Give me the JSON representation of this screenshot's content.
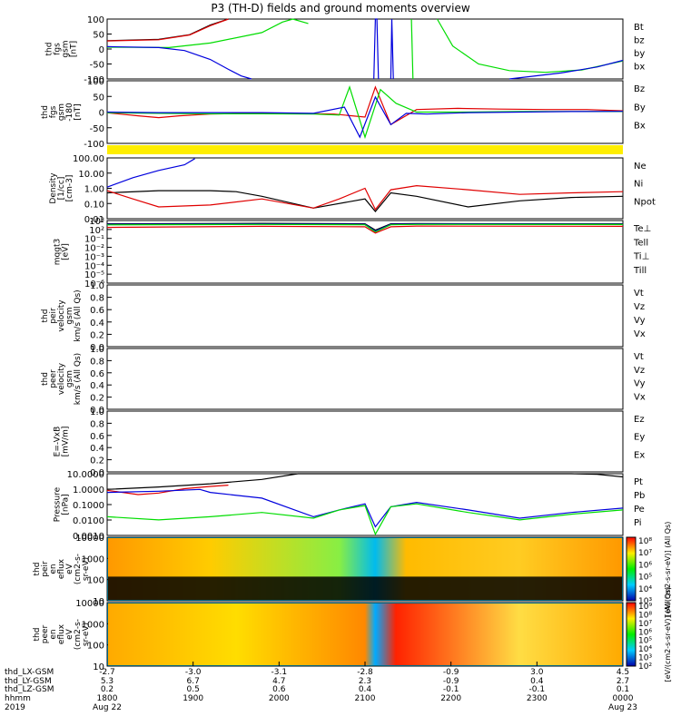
{
  "title": "P3 (TH-D) fields and ground moments overview",
  "colors": {
    "black": "#000000",
    "red": "#e00000",
    "green": "#00dd00",
    "blue": "#0000dd",
    "yellow": "#ffee00"
  },
  "chart_data": [
    {
      "id": "fgs",
      "type": "line",
      "ylabel_lines": [
        "thd",
        "fgs",
        "gsm",
        "[nT]"
      ],
      "ylim": [
        -100,
        100
      ],
      "yticks": [
        100,
        50,
        0,
        -50,
        -100
      ],
      "legend": [
        "Bt",
        "bz",
        "by",
        "bx"
      ],
      "legend_colors": [
        "black",
        "red",
        "green",
        "blue"
      ],
      "series": [
        {
          "color": "black",
          "x": [
            0,
            0.1,
            0.16,
            0.2,
            0.235
          ],
          "y": [
            28,
            32,
            48,
            80,
            100
          ]
        },
        {
          "color": "red",
          "x": [
            0,
            0.1,
            0.16,
            0.2,
            0.235
          ],
          "y": [
            27,
            31,
            47,
            78,
            100
          ]
        },
        {
          "color": "green",
          "x": [
            0,
            0.12,
            0.2,
            0.3,
            0.34,
            0.36,
            0.39
          ],
          "y": [
            6,
            5,
            20,
            55,
            90,
            100,
            85
          ]
        },
        {
          "color": "blue",
          "x": [
            0,
            0.1,
            0.15,
            0.2,
            0.235,
            0.26,
            0.28
          ],
          "y": [
            8,
            5,
            -5,
            -35,
            -68,
            -90,
            -100
          ]
        },
        {
          "color": "blue",
          "x": [
            0.517,
            0.52,
            0.523,
            0.526
          ],
          "y": [
            -100,
            100,
            100,
            -100
          ]
        },
        {
          "color": "blue",
          "x": [
            0.55,
            0.552,
            0.555
          ],
          "y": [
            -100,
            100,
            -100
          ]
        },
        {
          "color": "green",
          "x": [
            0.59,
            0.593
          ],
          "y": [
            100,
            -100
          ]
        },
        {
          "color": "green",
          "x": [
            0.64,
            0.67,
            0.72,
            0.78,
            0.85,
            0.92,
            1.0
          ],
          "y": [
            100,
            10,
            -50,
            -72,
            -78,
            -70,
            -40
          ]
        },
        {
          "color": "blue",
          "x": [
            0.78,
            0.88,
            0.95,
            1.0
          ],
          "y": [
            -100,
            -80,
            -60,
            -38
          ]
        }
      ]
    },
    {
      "id": "fgs-dsl",
      "type": "line",
      "ylabel_lines": [
        "thd",
        "fgs",
        "gsm",
        "-180",
        "[nT]"
      ],
      "ylim": [
        -125,
        125
      ],
      "yticks": [
        100,
        50,
        0,
        -50,
        -100
      ],
      "legend": [
        "Bz",
        "By",
        "Bx"
      ],
      "legend_colors": [
        "red",
        "green",
        "blue"
      ],
      "series": [
        {
          "color": "red",
          "x": [
            0,
            0.06,
            0.1,
            0.14,
            0.2,
            0.27,
            0.35,
            0.44,
            0.5,
            0.52,
            0.55,
            0.6,
            0.68,
            0.76,
            0.85,
            0.93,
            1.0
          ],
          "y": [
            -3,
            -15,
            -22,
            -15,
            -8,
            -5,
            -5,
            -8,
            -20,
            100,
            -50,
            10,
            15,
            12,
            10,
            10,
            5
          ]
        },
        {
          "color": "green",
          "x": [
            0,
            0.1,
            0.2,
            0.3,
            0.4,
            0.45,
            0.47,
            0.5,
            0.53,
            0.56,
            0.6,
            0.7,
            0.8,
            0.9,
            1.0
          ],
          "y": [
            -3,
            -5,
            -7,
            -7,
            -8,
            -12,
            100,
            -100,
            90,
            35,
            0,
            0,
            2,
            2,
            2
          ]
        },
        {
          "color": "blue",
          "x": [
            0,
            0.1,
            0.2,
            0.3,
            0.4,
            0.46,
            0.49,
            0.52,
            0.55,
            0.58,
            0.62,
            0.7,
            0.8,
            0.9,
            1.0
          ],
          "y": [
            0,
            -2,
            -2,
            -2,
            -5,
            20,
            -100,
            60,
            -50,
            -5,
            -8,
            -2,
            0,
            2,
            3
          ]
        }
      ]
    },
    {
      "id": "density",
      "type": "line",
      "yscale": "log",
      "ylabel_lines": [
        "Density",
        "[1/cc]",
        "[cm-3]"
      ],
      "ylim": [
        0.01,
        100
      ],
      "ytick_labels": [
        "100.00",
        "10.00",
        "1.00",
        "0.10",
        "0.01"
      ],
      "legend": [
        "Ne",
        "Ni",
        "Npot"
      ],
      "legend_colors": [
        "red",
        "black",
        "blue"
      ],
      "series": [
        {
          "color": "blue",
          "x": [
            0,
            0.05,
            0.1,
            0.15,
            0.17
          ],
          "y": [
            1.2,
            5,
            15,
            35,
            90
          ]
        },
        {
          "color": "black",
          "x": [
            0,
            0.1,
            0.2,
            0.25,
            0.3,
            0.4,
            0.5,
            0.52,
            0.55,
            0.6,
            0.7,
            0.8,
            0.9,
            1.0
          ],
          "y": [
            0.5,
            0.7,
            0.7,
            0.6,
            0.3,
            0.05,
            0.2,
            0.03,
            0.5,
            0.3,
            0.06,
            0.15,
            0.25,
            0.3
          ]
        },
        {
          "color": "red",
          "x": [
            0,
            0.05,
            0.1,
            0.2,
            0.3,
            0.4,
            0.45,
            0.5,
            0.52,
            0.55,
            0.6,
            0.7,
            0.8,
            0.9,
            1.0
          ],
          "y": [
            0.7,
            0.2,
            0.06,
            0.08,
            0.2,
            0.05,
            0.2,
            1,
            0.04,
            0.8,
            1.5,
            0.8,
            0.4,
            0.5,
            0.6
          ]
        }
      ]
    },
    {
      "id": "temperature",
      "type": "line",
      "yscale": "log",
      "ylabel_lines": [
        "mqgt3",
        "[eV]"
      ],
      "ylim": [
        1e-06,
        10000
      ],
      "ytick_labels": [
        "10³",
        "10²",
        "10⁻¹",
        "10⁻²",
        "10⁻³",
        "10⁻⁴",
        "10⁻⁵",
        "10⁻⁶"
      ],
      "legend": [
        "Te⊥",
        "Tell",
        "Ti⊥",
        "Till"
      ],
      "legend_colors": [
        "red",
        "black",
        "blue",
        "green"
      ],
      "series": [
        {
          "color": "black",
          "x": [
            0,
            0.3,
            0.5,
            0.52,
            0.55,
            0.6,
            1.0
          ],
          "y": [
            3000,
            3500,
            3000,
            300,
            3000,
            3200,
            3000
          ]
        },
        {
          "color": "blue",
          "x": [
            0,
            0.3,
            0.5,
            0.52,
            0.55,
            0.6,
            1.0
          ],
          "y": [
            2500,
            2800,
            2500,
            200,
            2500,
            2800,
            2600
          ]
        },
        {
          "color": "green",
          "x": [
            0,
            0.3,
            0.5,
            0.52,
            0.55,
            0.6,
            1.0
          ],
          "y": [
            2000,
            2400,
            2100,
            150,
            2100,
            2400,
            2300
          ]
        },
        {
          "color": "red",
          "x": [
            0,
            0.3,
            0.5,
            0.52,
            0.55,
            0.6,
            1.0
          ],
          "y": [
            800,
            1200,
            1000,
            100,
            1000,
            1300,
            1200
          ]
        }
      ]
    },
    {
      "id": "peir-velocity",
      "type": "line",
      "ylabel_lines": [
        "thd",
        "peir",
        "velocity",
        "gsm",
        "km/s (All Qs)"
      ],
      "ylim": [
        0,
        1
      ],
      "ytick_labels": [
        "1.0",
        "0.8",
        "0.6",
        "0.4",
        "0.2",
        "0.0"
      ],
      "legend": [
        "Vt",
        "Vz",
        "Vy",
        "Vx"
      ],
      "legend_colors": [
        "black",
        "red",
        "green",
        "blue"
      ],
      "series": []
    },
    {
      "id": "peer-velocity",
      "type": "line",
      "ylabel_lines": [
        "thd",
        "peer",
        "velocity",
        "gsm",
        "km/s (All Qs)"
      ],
      "ylim": [
        0,
        1
      ],
      "ytick_labels": [
        "1.0",
        "0.8",
        "0.6",
        "0.4",
        "0.2",
        "0.0"
      ],
      "legend": [
        "Vt",
        "Vz",
        "Vy",
        "Vx"
      ],
      "legend_colors": [
        "black",
        "red",
        "green",
        "blue"
      ],
      "series": []
    },
    {
      "id": "efield",
      "type": "line",
      "ylabel_lines": [
        "E=-VxB",
        "[mV/m]"
      ],
      "ylim": [
        0,
        1
      ],
      "ytick_labels": [
        "1.0",
        "0.8",
        "0.6",
        "0.4",
        "0.2",
        "0.0"
      ],
      "legend": [
        "Ez",
        "Ey",
        "Ex"
      ],
      "legend_colors": [
        "red",
        "green",
        "blue"
      ],
      "series": []
    },
    {
      "id": "pressure",
      "type": "line",
      "yscale": "log",
      "ylabel_lines": [
        "Pressure",
        "[nPa]"
      ],
      "ylim": [
        0.0005,
        10
      ],
      "ytick_labels": [
        "10.0000",
        "1.0000",
        "0.1000",
        "0.0100",
        "0.0010"
      ],
      "legend": [
        "Pt",
        "Pb",
        "Pe",
        "Pi"
      ],
      "legend_colors": [
        "black",
        "red",
        "green",
        "blue"
      ],
      "series": [
        {
          "color": "black",
          "x": [
            0,
            0.1,
            0.2,
            0.3,
            0.37,
            0.5,
            0.9,
            0.95,
            1.0
          ],
          "y": [
            0.8,
            1.2,
            2,
            4,
            10,
            10,
            10,
            9,
            6
          ]
        },
        {
          "color": "red",
          "x": [
            0,
            0.06,
            0.1,
            0.15,
            0.2,
            0.235
          ],
          "y": [
            0.7,
            0.35,
            0.45,
            0.9,
            1.3,
            1.6
          ]
        },
        {
          "color": "blue",
          "x": [
            0,
            0.1,
            0.18,
            0.2,
            0.3,
            0.4,
            0.45,
            0.5,
            0.52,
            0.55,
            0.6,
            0.7,
            0.8,
            0.9,
            1.0
          ],
          "y": [
            0.5,
            0.6,
            0.8,
            0.5,
            0.2,
            0.01,
            0.03,
            0.08,
            0.002,
            0.05,
            0.1,
            0.03,
            0.008,
            0.02,
            0.04
          ]
        },
        {
          "color": "green",
          "x": [
            0,
            0.1,
            0.2,
            0.3,
            0.4,
            0.45,
            0.5,
            0.52,
            0.55,
            0.6,
            0.7,
            0.8,
            0.9,
            1.0
          ],
          "y": [
            0.01,
            0.006,
            0.01,
            0.02,
            0.008,
            0.03,
            0.06,
            0.0006,
            0.05,
            0.08,
            0.02,
            0.006,
            0.015,
            0.03
          ]
        }
      ]
    },
    {
      "id": "peir-eflux",
      "type": "heatmap",
      "ylabel_lines": [
        "thd",
        "peir",
        "en",
        "eflux",
        "eV",
        "(cm2-s-",
        "sr-eV)"
      ],
      "ytick_labels": [
        "10000",
        "1000",
        "100",
        "10"
      ],
      "colorbar_labels": [
        "10⁸",
        "10⁷",
        "10⁶",
        "10⁵",
        "10⁴",
        "10³"
      ],
      "colorbar_title": "[eV/(cm2-s-sr-eV)] (All Qs)"
    },
    {
      "id": "peer-eflux",
      "type": "heatmap",
      "ylabel_lines": [
        "thd",
        "peer",
        "en",
        "eflux",
        "eV",
        "(cm2-s-",
        "sr-eV)"
      ],
      "ytick_labels": [
        "10000",
        "1000",
        "100",
        "10"
      ],
      "colorbar_labels": [
        "10⁹",
        "10⁸",
        "10⁷",
        "10⁶",
        "10⁵",
        "10⁴",
        "10³",
        "10²"
      ],
      "colorbar_title": "[eV/(cm2-s-sr-eV)] (All Qs)"
    }
  ],
  "x_axis": {
    "row_labels": [
      "thd_LX-GSM",
      "thd_LY-GSM",
      "thd_LZ-GSM",
      "hhmm",
      "2019"
    ],
    "ticks": [
      {
        "values": [
          "-2.7",
          "5.3",
          "0.2",
          "1800",
          "Aug 22"
        ]
      },
      {
        "values": [
          "-3.0",
          "6.7",
          "0.5",
          "1900",
          ""
        ]
      },
      {
        "values": [
          "-3.1",
          "4.7",
          "0.6",
          "2000",
          ""
        ]
      },
      {
        "values": [
          "-2.8",
          "2.3",
          "0.4",
          "2100",
          ""
        ]
      },
      {
        "values": [
          "-0.9",
          "-0.9",
          "-0.1",
          "2200",
          ""
        ]
      },
      {
        "values": [
          "3.0",
          "0.4",
          "-0.1",
          "2300",
          ""
        ]
      },
      {
        "values": [
          "4.5",
          "2.7",
          "0.1",
          "0000",
          "Aug 23"
        ]
      }
    ]
  }
}
